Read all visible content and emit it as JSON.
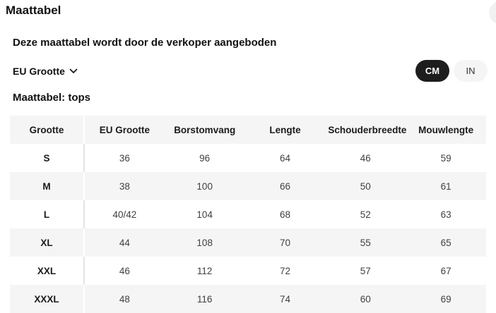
{
  "modal": {
    "title": "Maattabel",
    "subtitle": "Deze maattabel wordt door de verkoper aangeboden",
    "table_title": "Maattabel: tops",
    "size_system": {
      "label": "EU Grootte"
    },
    "unit_toggle": {
      "options": [
        {
          "label": "CM",
          "selected": true
        },
        {
          "label": "IN",
          "selected": false
        }
      ]
    }
  },
  "table": {
    "columns": [
      "Grootte",
      "EU Grootte",
      "Borstomvang",
      "Lengte",
      "Schouderbreedte",
      "Mouwlengte"
    ],
    "rows": [
      {
        "size": "S",
        "values": [
          "36",
          "96",
          "64",
          "46",
          "59"
        ]
      },
      {
        "size": "M",
        "values": [
          "38",
          "100",
          "66",
          "50",
          "61"
        ]
      },
      {
        "size": "L",
        "values": [
          "40/42",
          "104",
          "68",
          "52",
          "63"
        ]
      },
      {
        "size": "XL",
        "values": [
          "44",
          "108",
          "70",
          "55",
          "65"
        ]
      },
      {
        "size": "XXL",
        "values": [
          "46",
          "112",
          "72",
          "57",
          "67"
        ]
      },
      {
        "size": "XXXL",
        "values": [
          "48",
          "116",
          "74",
          "60",
          "69"
        ]
      }
    ]
  },
  "colors": {
    "selected_pill_bg": "#1d1d1d",
    "selected_pill_text": "#ffffff",
    "unselected_pill_bg": "#f5f5f5",
    "row_stripe_bg": "#f5f5f5",
    "text_primary": "#111111",
    "text_values": "#404040"
  }
}
